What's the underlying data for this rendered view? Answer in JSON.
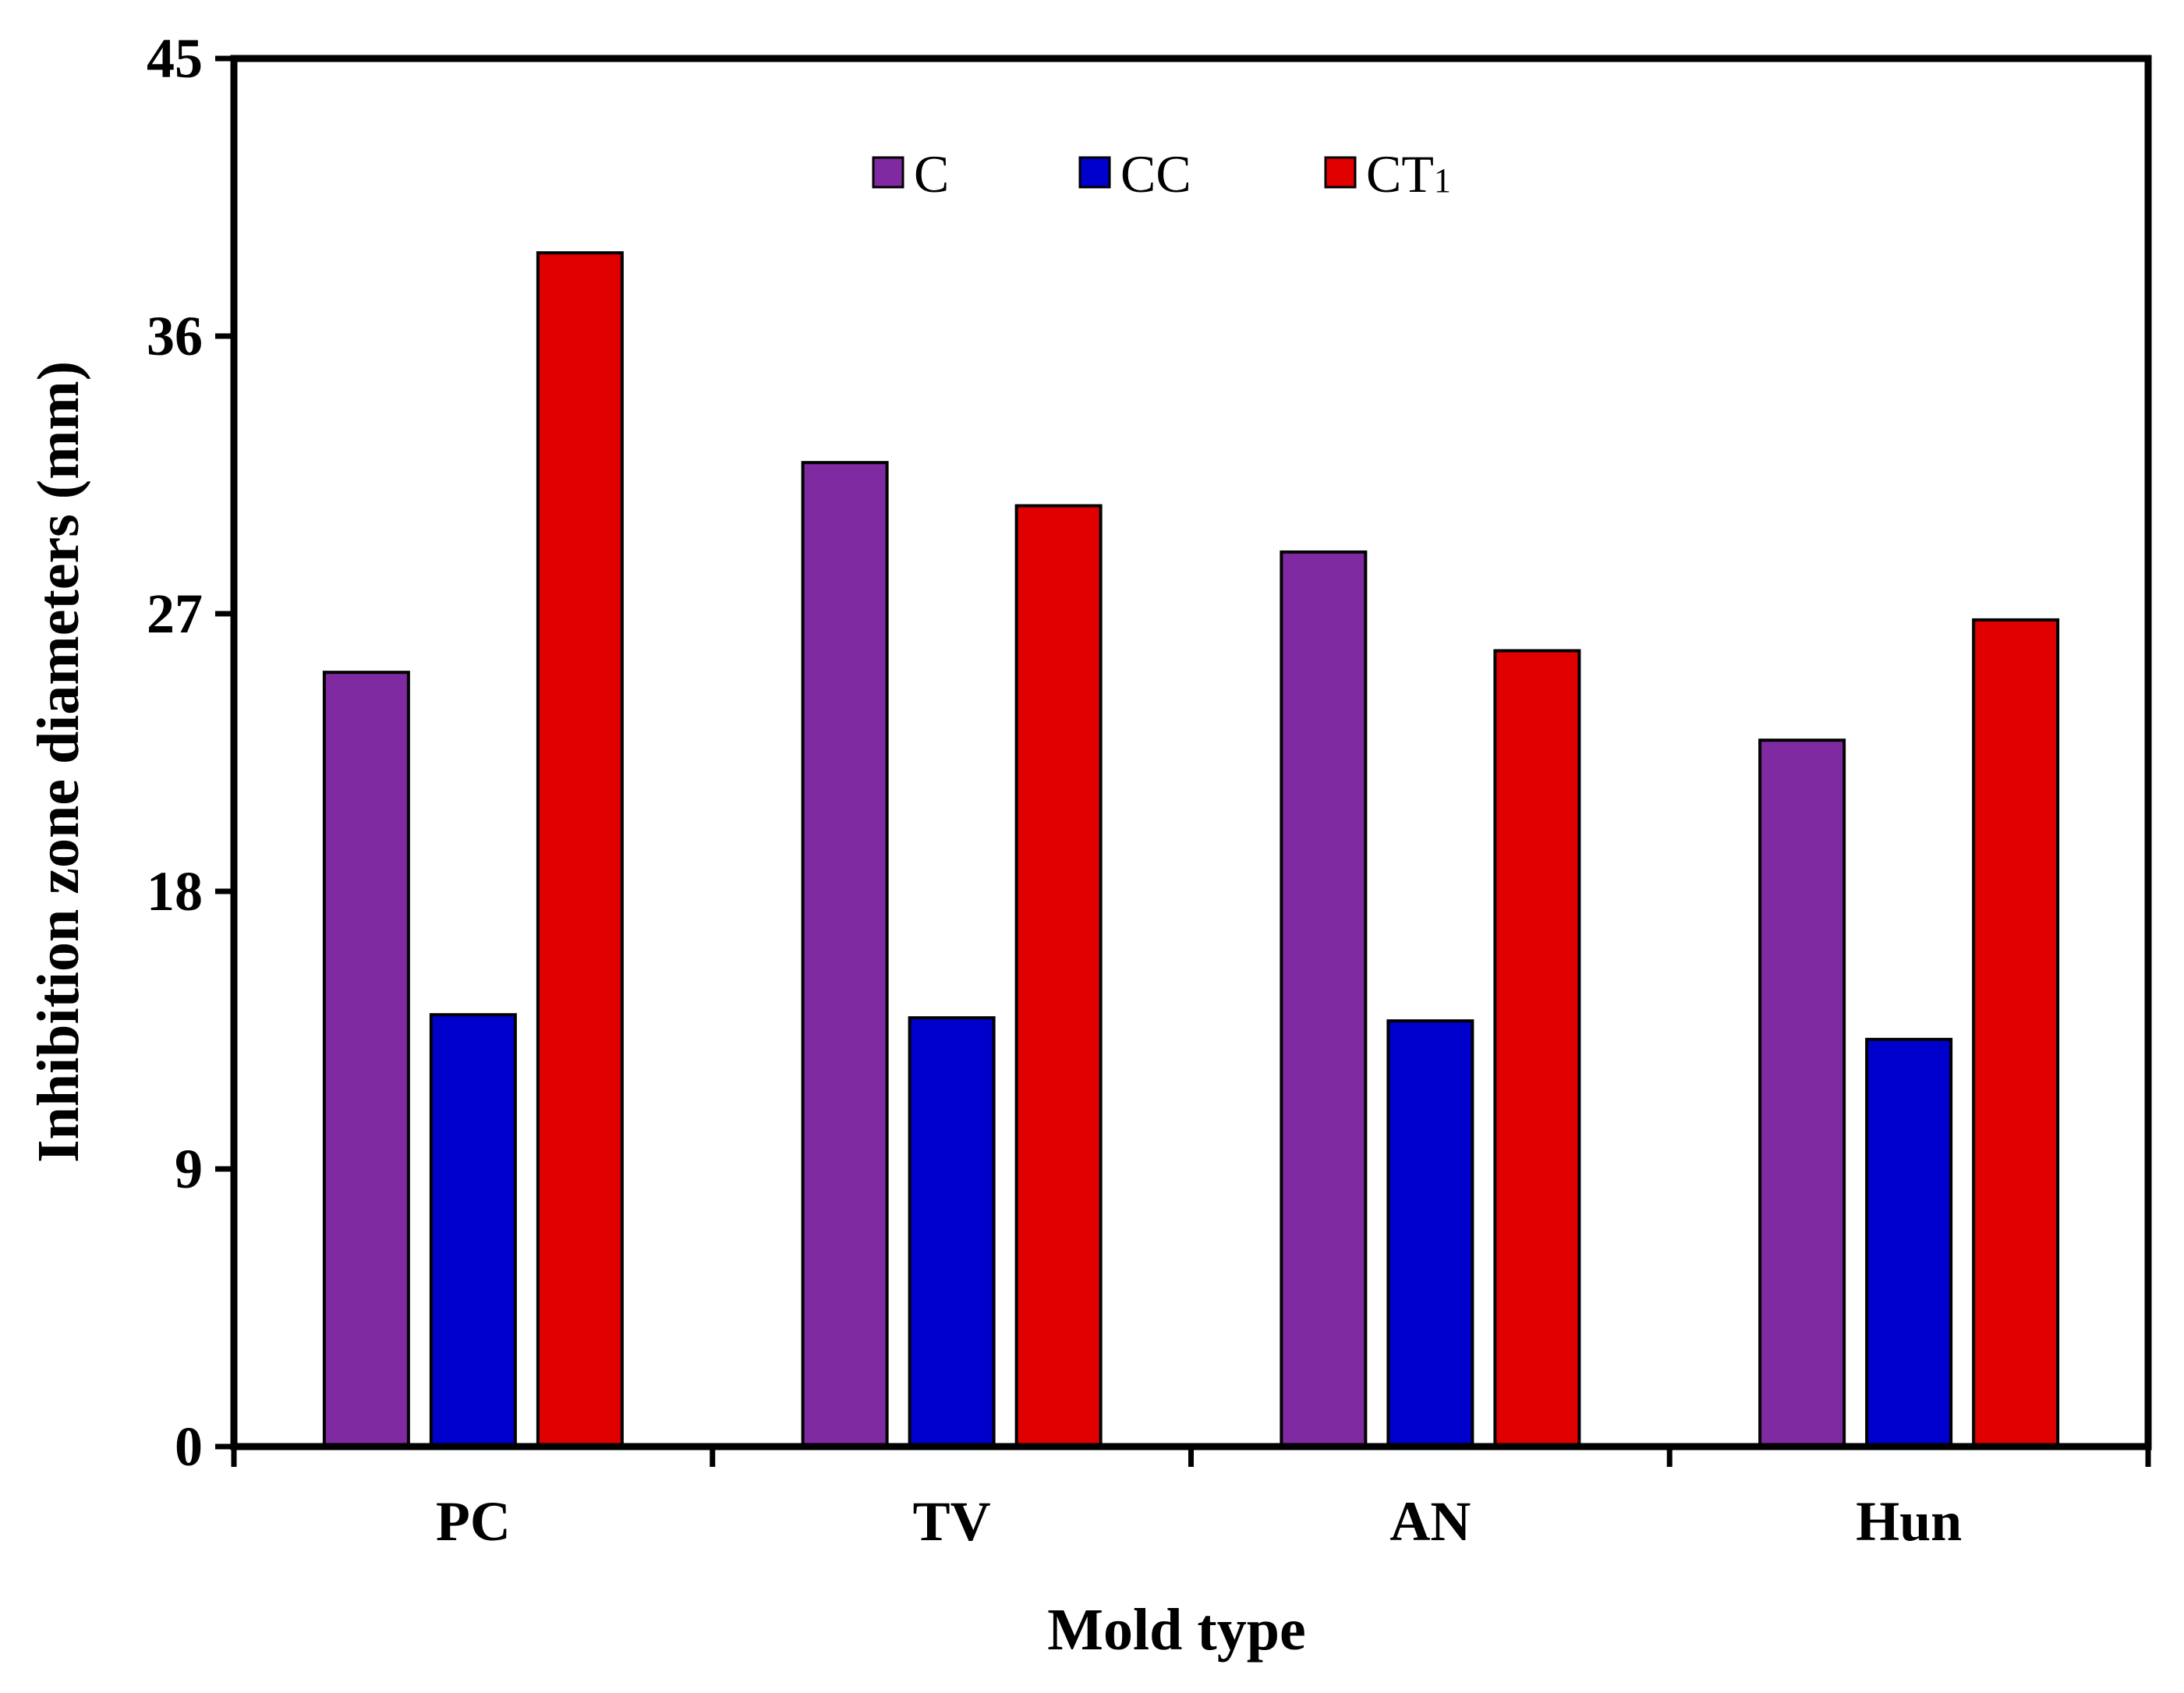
{
  "chart_data": {
    "type": "bar",
    "title": "",
    "xlabel": "Mold type",
    "ylabel": "Inhibition zone diameters (mm)",
    "categories": [
      "PC",
      "TV",
      "AN",
      "Hun"
    ],
    "ylim": [
      0,
      45
    ],
    "yticks": [
      "0",
      "9",
      "18",
      "27",
      "36",
      "45"
    ],
    "grid": false,
    "legend_position": "top-center",
    "series": [
      {
        "name": "C",
        "legend_label": "C",
        "color": "#7f2aa1",
        "values": [
          25.1,
          31.9,
          29.0,
          22.9
        ]
      },
      {
        "name": "CC",
        "legend_label": "CC",
        "color": "#0000cc",
        "values": [
          14.0,
          13.9,
          13.8,
          13.2
        ]
      },
      {
        "name": "CT1",
        "legend_main": "CT",
        "legend_sub": "1",
        "color": "#e00000",
        "values": [
          38.7,
          30.5,
          25.8,
          26.8
        ]
      }
    ]
  }
}
